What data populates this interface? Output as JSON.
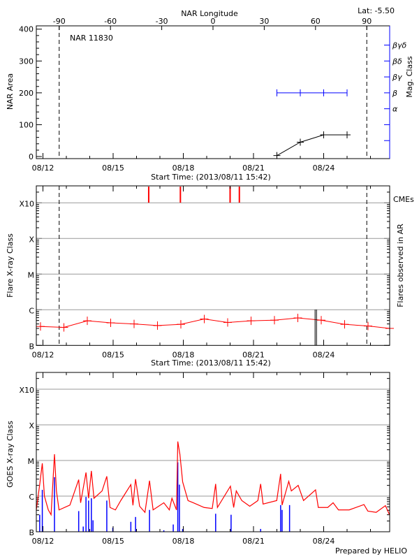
{
  "colors": {
    "axis": "#000000",
    "grid": "#999999",
    "area": "#000000",
    "mag": "#0000ff",
    "flare": "#ff0000",
    "cme": "#ff0000",
    "goes_long": "#ff0000",
    "goes_short": "#0000ff"
  },
  "chart_data": [
    {
      "type": "line",
      "title": "NAR 11830",
      "corner_label": "Lat:  -5.50",
      "xlabel": "Start Time: (2013/08/11 15:42)",
      "x_top_label": "NAR Longitude",
      "x_top_ticks": [
        "-90",
        "-60",
        "-30",
        "0",
        "30",
        "60",
        "90"
      ],
      "ylabel": "NAR Area",
      "ylabel_right": "Mag. Class",
      "ylim": [
        0,
        400
      ],
      "y_ticks": [
        "0",
        "100",
        "200",
        "300",
        "400"
      ],
      "right_ticks": [
        "α",
        "β",
        "βγ",
        "βδ",
        "βγδ"
      ],
      "xlim": [
        "2013-08-11 15:42",
        "2013-08-26 21:00"
      ],
      "x_ticks": [
        "08/12",
        "08/15",
        "08/18",
        "08/21",
        "08/24"
      ],
      "limb_markers_longitude": [
        -90,
        90
      ],
      "series": [
        {
          "type": "area",
          "x": [
            "2013-08-22 00:00",
            "2013-08-23 00:00",
            "2013-08-24 00:00",
            "2013-08-25 00:00"
          ],
          "y": [
            3,
            45,
            68,
            68
          ]
        },
        {
          "type": "mag_class",
          "x": [
            "2013-08-22 00:00",
            "2013-08-23 00:00",
            "2013-08-24 00:00",
            "2013-08-25 00:00"
          ],
          "y": [
            "β",
            "β",
            "β",
            "β"
          ]
        }
      ]
    },
    {
      "type": "line",
      "xlabel": "Start Time: (2013/08/11 15:42)",
      "ylabel": "Flare X-ray Class",
      "ylabel_right": "Flares observed in AR",
      "cme_label": "CMEs",
      "y_ticks": [
        "B",
        "C",
        "M",
        "X",
        "X10"
      ],
      "y_scale": "log",
      "ylim": [
        "B1.0",
        "X10+"
      ],
      "grid": true,
      "x_ticks": [
        "08/12",
        "08/15",
        "08/18",
        "08/21",
        "08/24"
      ],
      "flare_class_series": {
        "x": [
          "2013-08-11 21:30",
          "2013-08-12 21:30",
          "2013-08-13 21:30",
          "2013-08-14 21:30",
          "2013-08-15 21:30",
          "2013-08-16 21:30",
          "2013-08-17 21:30",
          "2013-08-18 21:30",
          "2013-08-19 21:30",
          "2013-08-20 21:30",
          "2013-08-21 21:30",
          "2013-08-22 21:30",
          "2013-08-23 21:30",
          "2013-08-24 21:30",
          "2013-08-25 21:30",
          "2013-08-26 21:30"
        ],
        "y": [
          "B3.4",
          "B3.2",
          "B4.9",
          "B4.3",
          "B4.0",
          "B3.6",
          "B3.9",
          "B5.5",
          "B4.4",
          "B4.9",
          "B5.1",
          "B5.9",
          "B5.1",
          "B3.9",
          "B3.5",
          "B3.0"
        ]
      },
      "cmes": [
        "2013-08-16 12:30",
        "2013-08-17 21:00",
        "2013-08-20 00:00",
        "2013-08-20 09:30"
      ],
      "ar_flares": [
        "2013-08-23 15:10",
        "2013-08-23 16:40"
      ]
    },
    {
      "type": "line",
      "ylabel": "GOES X-ray Class",
      "y_ticks": [
        "B",
        "C",
        "M",
        "X",
        "X10"
      ],
      "y_scale": "log",
      "grid": true,
      "x_ticks": [
        "08/12",
        "08/15",
        "08/18",
        "08/21",
        "08/24"
      ],
      "footer": "Prepared by HELIO",
      "series": [
        {
          "channel": "long",
          "points": [
            [
              "2013-08-11 17:00",
              4.1e-07
            ],
            [
              "2013-08-11 20:40",
              2.1e-06
            ],
            [
              "2013-08-11 23:20",
              8.3e-06
            ],
            [
              "2013-08-12 01:30",
              1e-06
            ],
            [
              "2013-08-12 05:30",
              4.1e-07
            ],
            [
              "2013-08-12 08:20",
              3e-07
            ],
            [
              "2013-08-12 11:50",
              1.5e-05
            ],
            [
              "2013-08-12 13:50",
              1.4e-06
            ],
            [
              "2013-08-12 16:30",
              4.1e-07
            ],
            [
              "2013-08-13 03:40",
              5.6e-07
            ],
            [
              "2013-08-13 12:40",
              2.9e-06
            ],
            [
              "2013-08-13 14:40",
              6.5e-07
            ],
            [
              "2013-08-13 20:10",
              4.6e-06
            ],
            [
              "2013-08-13 22:50",
              8.7e-07
            ],
            [
              "2013-08-14 01:40",
              5.1e-06
            ],
            [
              "2013-08-14 04:20",
              8.7e-07
            ],
            [
              "2013-08-14 12:40",
              1.4e-06
            ],
            [
              "2013-08-14 17:30",
              3.6e-06
            ],
            [
              "2013-08-14 20:50",
              4.8e-07
            ],
            [
              "2013-08-15 02:20",
              4.1e-07
            ],
            [
              "2013-08-15 07:50",
              7.5e-07
            ],
            [
              "2013-08-15 18:10",
              2.1e-06
            ],
            [
              "2013-08-15 20:20",
              5.5e-07
            ],
            [
              "2013-08-15 23:00",
              3e-06
            ],
            [
              "2013-08-16 03:10",
              5.2e-07
            ],
            [
              "2013-08-16 08:40",
              3.5e-07
            ],
            [
              "2013-08-16 13:20",
              2.7e-06
            ],
            [
              "2013-08-16 17:00",
              4.1e-07
            ],
            [
              "2013-08-17 04:00",
              6.5e-07
            ],
            [
              "2013-08-17 09:40",
              4.1e-07
            ],
            [
              "2013-08-17 12:20",
              8.7e-07
            ],
            [
              "2013-08-17 17:00",
              4.1e-07
            ],
            [
              "2013-08-17 18:20",
              3.4e-05
            ],
            [
              "2013-08-17 20:30",
              1.5e-05
            ],
            [
              "2013-08-17 23:20",
              2.5e-06
            ],
            [
              "2013-08-18 04:50",
              7.5e-07
            ],
            [
              "2013-08-18 10:20",
              6.5e-07
            ],
            [
              "2013-08-18 21:20",
              4.8e-07
            ],
            [
              "2013-08-19 05:40",
              4.5e-07
            ],
            [
              "2013-08-19 09:10",
              2.2e-06
            ],
            [
              "2013-08-19 11:00",
              4.8e-07
            ],
            [
              "2013-08-20 00:20",
              1.9e-06
            ],
            [
              "2013-08-20 03:40",
              4.8e-07
            ],
            [
              "2013-08-20 06:20",
              1.4e-06
            ],
            [
              "2013-08-20 12:00",
              7.5e-07
            ],
            [
              "2013-08-20 20:10",
              5.2e-07
            ],
            [
              "2013-08-21 04:30",
              7.5e-07
            ],
            [
              "2013-08-21 07:20",
              2.2e-06
            ],
            [
              "2013-08-21 09:50",
              6e-07
            ],
            [
              "2013-08-21 23:50",
              7.5e-07
            ],
            [
              "2013-08-22 03:50",
              4.2e-06
            ],
            [
              "2013-08-22 05:20",
              5.6e-07
            ],
            [
              "2013-08-22 12:10",
              2.6e-06
            ],
            [
              "2013-08-22 14:50",
              1.4e-06
            ],
            [
              "2013-08-22 21:50",
              2e-06
            ],
            [
              "2013-08-23 03:20",
              7.5e-07
            ],
            [
              "2013-08-23 15:40",
              1.5e-06
            ],
            [
              "2013-08-23 18:30",
              4.8e-07
            ],
            [
              "2013-08-24 04:10",
              4.8e-07
            ],
            [
              "2013-08-24 09:40",
              6.5e-07
            ],
            [
              "2013-08-24 15:10",
              4.1e-07
            ],
            [
              "2013-08-25 02:10",
              4.1e-07
            ],
            [
              "2013-08-25 17:20",
              5.8e-07
            ],
            [
              "2013-08-25 21:20",
              3.8e-07
            ],
            [
              "2013-08-26 05:50",
              3.5e-07
            ],
            [
              "2013-08-26 15:20",
              5.4e-07
            ],
            [
              "2013-08-26 19:30",
              3e-07
            ]
          ]
        },
        {
          "channel": "short",
          "points": [
            [
              "2013-08-11 20:40",
              3e-07
            ],
            [
              "2013-08-11 23:20",
              1.5e-06
            ],
            [
              "2013-08-12 11:50",
              3.4e-06
            ],
            [
              "2013-08-13 12:40",
              3.8e-07
            ],
            [
              "2013-08-13 17:20",
              1.4e-07
            ],
            [
              "2013-08-13 20:10",
              9.5e-07
            ],
            [
              "2013-08-13 22:50",
              7.5e-07
            ],
            [
              "2013-08-14 01:40",
              8.7e-07
            ],
            [
              "2013-08-14 03:20",
              2.1e-07
            ],
            [
              "2013-08-14 17:30",
              7.5e-07
            ],
            [
              "2013-08-14 23:40",
              1.3e-07
            ],
            [
              "2013-08-15 18:10",
              1.9e-07
            ],
            [
              "2013-08-15 23:00",
              2.6e-07
            ],
            [
              "2013-08-16 13:20",
              4.1e-07
            ],
            [
              "2013-08-17 04:00",
              1.1e-07
            ],
            [
              "2013-08-17 13:40",
              1.6e-07
            ],
            [
              "2013-08-17 18:20",
              8.9e-06
            ],
            [
              "2013-08-17 20:00",
              2.1e-06
            ],
            [
              "2013-08-17 23:20",
              1.2e-07
            ],
            [
              "2013-08-19 09:10",
              3.2e-07
            ],
            [
              "2013-08-20 01:00",
              3e-07
            ],
            [
              "2013-08-21 07:20",
              1.2e-07
            ],
            [
              "2013-08-22 03:50",
              5.6e-07
            ],
            [
              "2013-08-22 05:20",
              4.1e-07
            ],
            [
              "2013-08-22 13:00",
              5.6e-07
            ]
          ]
        }
      ]
    }
  ]
}
